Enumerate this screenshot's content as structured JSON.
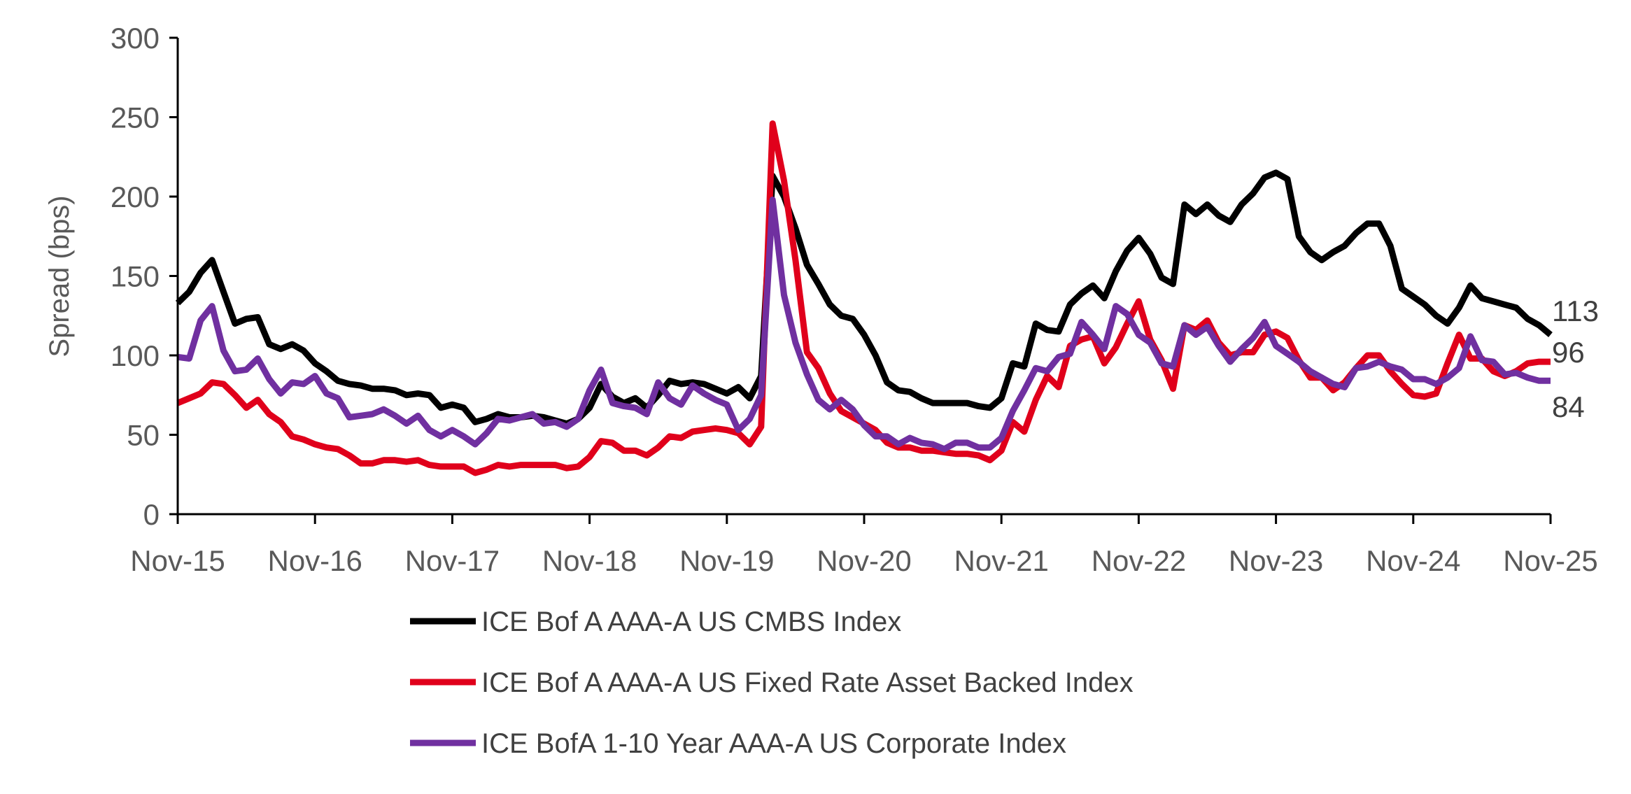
{
  "chart_data": {
    "type": "line",
    "title": "",
    "xlabel": "",
    "ylabel": "Spread (bps)",
    "ylim": [
      0,
      300
    ],
    "yticks": [
      "0",
      "50",
      "100",
      "150",
      "200",
      "250",
      "300"
    ],
    "x_tick_labels": [
      "Nov-15",
      "Nov-16",
      "Nov-17",
      "Nov-18",
      "Nov-19",
      "Nov-20",
      "Nov-21",
      "Nov-22",
      "Nov-23",
      "Nov-24",
      "Nov-25"
    ],
    "x_range": [
      "Nov-15",
      "Nov-25"
    ],
    "frequency": "monthly",
    "grid": false,
    "legend_placement": "bottom",
    "series": [
      {
        "name": "ICE Bof A AAA-A US CMBS Index",
        "color": "#000000",
        "end_label": "113",
        "values": [
          133,
          140,
          152,
          160,
          140,
          120,
          123,
          124,
          107,
          104,
          107,
          103,
          95,
          90,
          84,
          82,
          81,
          79,
          79,
          78,
          75,
          76,
          75,
          67,
          69,
          67,
          58,
          60,
          63,
          61,
          61,
          62,
          61,
          59,
          57,
          60,
          67,
          82,
          74,
          70,
          73,
          67,
          75,
          84,
          82,
          83,
          82,
          79,
          76,
          80,
          73,
          87,
          213,
          200,
          180,
          157,
          145,
          132,
          125,
          123,
          113,
          100,
          83,
          78,
          77,
          73,
          70,
          70,
          70,
          70,
          68,
          67,
          73,
          95,
          93,
          120,
          116,
          115,
          132,
          139,
          144,
          136,
          153,
          166,
          174,
          164,
          149,
          145,
          195,
          189,
          195,
          188,
          184,
          195,
          202,
          212,
          215,
          211,
          175,
          165,
          160,
          165,
          169,
          177,
          183,
          183,
          169,
          142,
          137,
          132,
          125,
          120,
          130,
          144,
          136,
          134,
          132,
          130,
          123,
          119,
          113
        ]
      },
      {
        "name": "ICE Bof A AAA-A US Fixed Rate Asset Backed Index",
        "color": "#E0001B",
        "end_label": "96",
        "values": [
          70,
          73,
          76,
          83,
          82,
          75,
          67,
          72,
          63,
          58,
          49,
          47,
          44,
          42,
          41,
          37,
          32,
          32,
          34,
          34,
          33,
          34,
          31,
          30,
          30,
          30,
          26,
          28,
          31,
          30,
          31,
          31,
          31,
          31,
          29,
          30,
          36,
          46,
          45,
          40,
          40,
          37,
          42,
          49,
          48,
          52,
          53,
          54,
          53,
          51,
          44,
          55,
          246,
          210,
          160,
          102,
          92,
          76,
          65,
          61,
          57,
          53,
          45,
          42,
          42,
          40,
          40,
          39,
          38,
          38,
          37,
          34,
          40,
          58,
          52,
          72,
          87,
          80,
          106,
          110,
          112,
          95,
          105,
          120,
          134,
          110,
          97,
          79,
          119,
          116,
          122,
          108,
          100,
          102,
          102,
          113,
          115,
          111,
          97,
          86,
          86,
          78,
          83,
          92,
          100,
          100,
          90,
          82,
          75,
          74,
          76,
          95,
          113,
          98,
          98,
          90,
          87,
          90,
          95,
          96,
          96
        ]
      },
      {
        "name": "ICE BofA 1-10 Year AAA-A US Corporate Index",
        "color": "#7030A0",
        "end_label": "84",
        "values": [
          99,
          98,
          122,
          131,
          103,
          90,
          91,
          98,
          85,
          76,
          83,
          82,
          87,
          76,
          73,
          61,
          62,
          63,
          66,
          62,
          57,
          62,
          53,
          49,
          53,
          49,
          44,
          51,
          60,
          59,
          61,
          63,
          57,
          58,
          55,
          60,
          78,
          91,
          70,
          68,
          67,
          63,
          83,
          73,
          69,
          81,
          76,
          72,
          69,
          53,
          60,
          75,
          198,
          138,
          108,
          88,
          72,
          66,
          72,
          66,
          56,
          49,
          49,
          44,
          48,
          45,
          44,
          41,
          45,
          45,
          42,
          42,
          48,
          65,
          78,
          92,
          90,
          99,
          101,
          121,
          113,
          104,
          131,
          126,
          113,
          108,
          95,
          93,
          119,
          113,
          118,
          106,
          96,
          104,
          111,
          121,
          106,
          101,
          96,
          90,
          86,
          82,
          80,
          92,
          93,
          96,
          93,
          91,
          85,
          85,
          82,
          86,
          92,
          112,
          97,
          96,
          88,
          89,
          86,
          84,
          84
        ]
      }
    ]
  }
}
